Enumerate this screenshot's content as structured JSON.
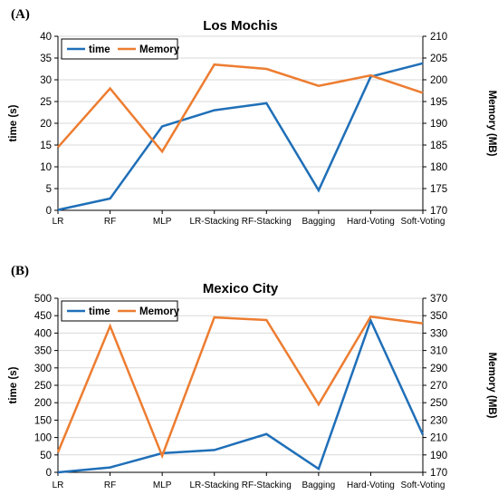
{
  "figure": {
    "colors": {
      "time": "#1f6fb8",
      "memory": "#ed7d31",
      "grid": "#d9d9d9",
      "axis": "#000000"
    }
  },
  "chart_data": [
    {
      "panel": "(A)",
      "type": "line",
      "title": "Los Mochis",
      "categories": [
        "LR",
        "RF",
        "MLP",
        "LR-Stacking",
        "RF-Stacking",
        "Bagging",
        "Hard-Voting",
        "Soft-Voting"
      ],
      "series": [
        {
          "name": "time",
          "axis": "left",
          "values": [
            0.1,
            2.7,
            19.3,
            23.0,
            24.6,
            4.6,
            30.7,
            33.8
          ]
        },
        {
          "name": "Memory",
          "axis": "right",
          "values": [
            184.5,
            198.0,
            183.5,
            203.5,
            202.5,
            198.6,
            201.0,
            197.0
          ]
        }
      ],
      "ylabel": "time (s)",
      "y2label": "Memory (MB)",
      "ylim": [
        0,
        40
      ],
      "y2lim": [
        170,
        210
      ],
      "yticks": [
        0,
        5,
        10,
        15,
        20,
        25,
        30,
        35,
        40
      ],
      "y2ticks": [
        170,
        175,
        180,
        185,
        190,
        195,
        200,
        205,
        210
      ],
      "grid": true,
      "legend": "top-left"
    },
    {
      "panel": "(B)",
      "type": "line",
      "title": "Mexico City",
      "categories": [
        "LR",
        "RF",
        "MLP",
        "LR-Stacking",
        "RF-Stacking",
        "Bagging",
        "Hard-Voting",
        "Soft-Voting"
      ],
      "series": [
        {
          "name": "time",
          "axis": "left",
          "values": [
            0,
            14,
            55,
            64,
            110,
            10,
            436,
            108
          ]
        },
        {
          "name": "Memory",
          "axis": "right",
          "values": [
            193,
            338,
            189,
            348,
            345,
            248,
            349,
            341
          ]
        }
      ],
      "ylabel": "time (s)",
      "y2label": "Memory (MB)",
      "ylim": [
        0,
        500
      ],
      "y2lim": [
        170,
        370
      ],
      "yticks": [
        0,
        50,
        100,
        150,
        200,
        250,
        300,
        350,
        400,
        450,
        500
      ],
      "y2ticks": [
        170,
        190,
        210,
        230,
        250,
        270,
        290,
        310,
        330,
        350,
        370
      ],
      "grid": true,
      "legend": "top-left"
    }
  ]
}
